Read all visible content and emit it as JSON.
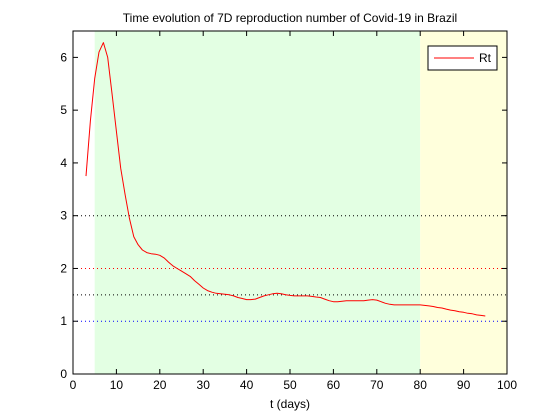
{
  "chart_data": {
    "type": "line",
    "title": "Time evolution of 7D reproduction number of Covid-19 in Brazil",
    "xlabel": "t (days)",
    "ylabel": "",
    "xlim": [
      0,
      100
    ],
    "ylim": [
      0,
      6.5
    ],
    "xticks": [
      0,
      10,
      20,
      30,
      40,
      50,
      60,
      70,
      80,
      90,
      100
    ],
    "yticks": [
      0,
      1,
      2,
      3,
      4,
      5,
      6
    ],
    "grid": false,
    "legend": {
      "position": "top-right",
      "entries": [
        "Rt"
      ]
    },
    "shaded_regions": [
      {
        "x": [
          5,
          80
        ],
        "color": "#e3ffe3"
      },
      {
        "x": [
          80,
          100
        ],
        "color": "#ffffdc"
      }
    ],
    "reference_lines": [
      {
        "y": 3.0,
        "color": "#000000",
        "style": "dotted"
      },
      {
        "y": 2.0,
        "color": "#ff0000",
        "style": "dotted"
      },
      {
        "y": 1.5,
        "color": "#000000",
        "style": "dotted"
      },
      {
        "y": 1.0,
        "color": "#0000ff",
        "style": "dotted"
      }
    ],
    "series": [
      {
        "name": "Rt",
        "color": "#ff0000",
        "x": [
          3,
          4,
          5,
          6,
          7,
          8,
          9,
          10,
          11,
          12,
          13,
          14,
          15,
          16,
          17,
          18,
          19,
          20,
          21,
          22,
          23,
          24,
          25,
          26,
          27,
          28,
          29,
          30,
          31,
          32,
          33,
          34,
          35,
          36,
          37,
          38,
          39,
          40,
          41,
          42,
          43,
          44,
          45,
          46,
          47,
          48,
          49,
          50,
          51,
          52,
          53,
          54,
          55,
          56,
          57,
          58,
          59,
          60,
          61,
          62,
          63,
          64,
          65,
          66,
          67,
          68,
          69,
          70,
          71,
          72,
          73,
          74,
          75,
          76,
          77,
          78,
          79,
          80,
          81,
          82,
          83,
          84,
          85,
          86,
          87,
          88,
          89,
          90,
          91,
          92,
          93,
          94,
          95
        ],
        "y": [
          3.75,
          4.8,
          5.6,
          6.1,
          6.28,
          6.0,
          5.3,
          4.6,
          3.9,
          3.4,
          2.95,
          2.6,
          2.45,
          2.35,
          2.3,
          2.28,
          2.27,
          2.25,
          2.2,
          2.12,
          2.05,
          2.0,
          1.95,
          1.9,
          1.85,
          1.77,
          1.7,
          1.63,
          1.58,
          1.55,
          1.53,
          1.52,
          1.51,
          1.5,
          1.48,
          1.45,
          1.43,
          1.41,
          1.41,
          1.42,
          1.45,
          1.48,
          1.5,
          1.52,
          1.53,
          1.52,
          1.5,
          1.49,
          1.48,
          1.48,
          1.48,
          1.48,
          1.47,
          1.46,
          1.45,
          1.42,
          1.39,
          1.37,
          1.37,
          1.38,
          1.39,
          1.39,
          1.39,
          1.39,
          1.39,
          1.4,
          1.41,
          1.4,
          1.37,
          1.34,
          1.32,
          1.31,
          1.31,
          1.31,
          1.31,
          1.31,
          1.31,
          1.31,
          1.3,
          1.29,
          1.28,
          1.26,
          1.25,
          1.23,
          1.21,
          1.2,
          1.18,
          1.17,
          1.15,
          1.14,
          1.12,
          1.11,
          1.1
        ]
      }
    ]
  }
}
